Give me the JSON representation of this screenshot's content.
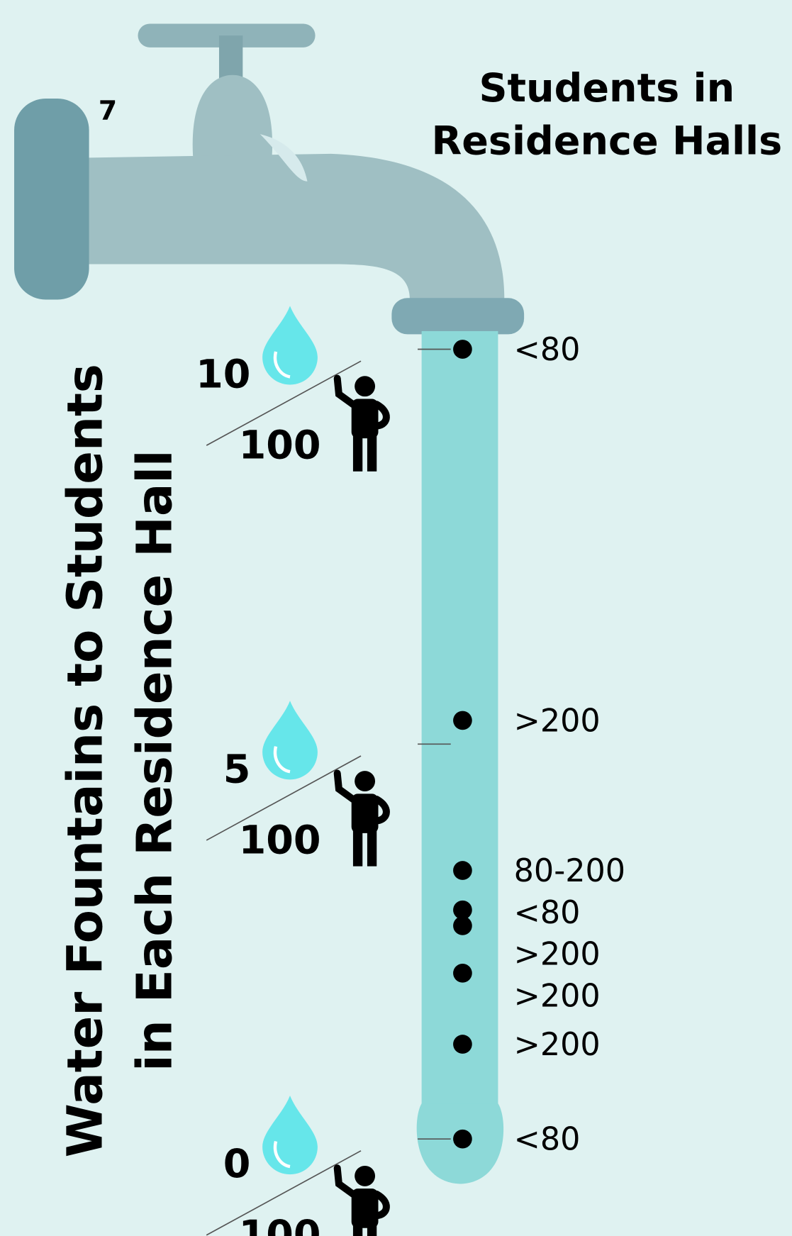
{
  "chart_data": {
    "type": "dot",
    "title": [
      "Students in",
      "Residence Halls"
    ],
    "y_label": [
      "Water Fountains to Students",
      "in Each Residence Hall"
    ],
    "annotation": "7",
    "tick_denominator": "100",
    "ylim": [
      0,
      10
    ],
    "yticks": [
      0,
      5,
      10
    ],
    "categories": [
      "<80",
      ">200",
      "80-200",
      "<80",
      ">200",
      ">200",
      ">200",
      "<80"
    ],
    "values": [
      10,
      5.3,
      3.4,
      2.9,
      2.7,
      2.1,
      1.2,
      0
    ],
    "color": "#000000"
  }
}
